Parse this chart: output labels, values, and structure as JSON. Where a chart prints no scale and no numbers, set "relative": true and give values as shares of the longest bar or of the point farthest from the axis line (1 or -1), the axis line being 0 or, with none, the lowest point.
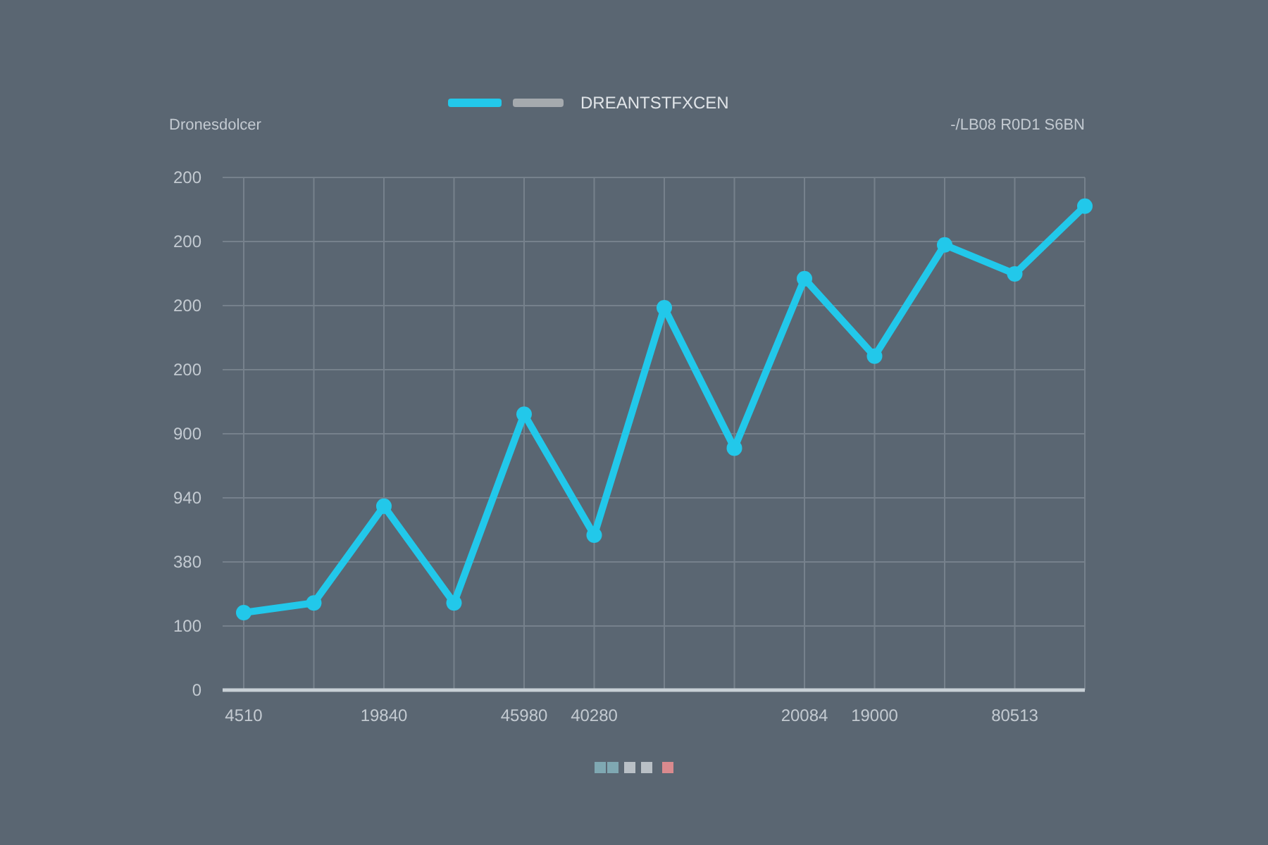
{
  "chart_data": {
    "type": "line",
    "ylabel": "Dronesdolcer",
    "annotations": [
      "-/LB08  R0D1  S6BN",
      "0",
      "100",
      "380",
      "940",
      "900",
      "200",
      "200",
      "200",
      "200"
    ],
    "categories": [
      "4510",
      null,
      "19840",
      null,
      "45980",
      "40280",
      null,
      null,
      "20084",
      "19000",
      null,
      "80513",
      null
    ],
    "relative": true,
    "series": [
      {
        "name": "DREANTSTFXCEN",
        "color": "#22c8ea",
        "values": [
          0.16,
          0.18,
          0.38,
          0.18,
          0.57,
          0.32,
          0.79,
          0.5,
          0.85,
          0.69,
          0.92,
          0.86,
          1
        ]
      }
    ],
    "grid": true,
    "legend": "top",
    "marker": "circle",
    "line_style": "solid"
  }
}
